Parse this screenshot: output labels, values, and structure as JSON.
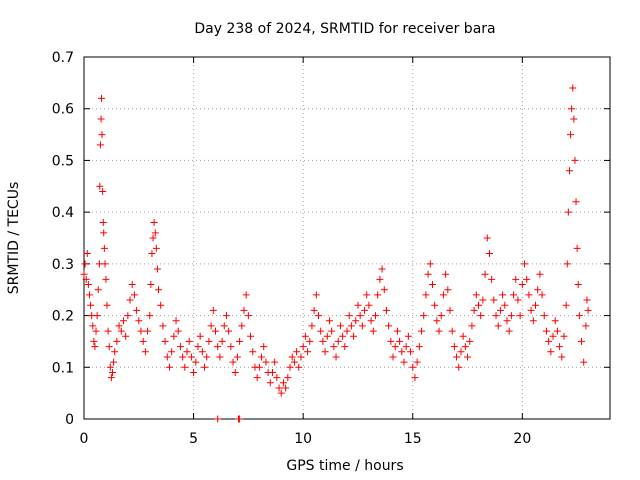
{
  "chart_data": {
    "type": "scatter",
    "title": "Day 238 of 2024, SRMTID for receiver bara",
    "xlabel": "GPS time / hours",
    "ylabel": "SRMTID / TECUs",
    "xlim": [
      0,
      24
    ],
    "ylim": [
      0,
      0.7
    ],
    "xticks": [
      0,
      5,
      10,
      15,
      20
    ],
    "xtick_labels": [
      "0",
      "5",
      "10",
      "15",
      "20"
    ],
    "yticks": [
      0,
      0.1,
      0.2,
      0.3,
      0.4,
      0.5,
      0.6,
      0.7
    ],
    "ytick_labels": [
      "0",
      "0.1",
      "0.2",
      "0.3",
      "0.4",
      "0.5",
      "0.6",
      "0.7"
    ],
    "grid": true,
    "marker": "+",
    "marker_color": "#ff0000",
    "series": [
      {
        "name": "SRMTID",
        "points": [
          [
            0.0,
            0.28
          ],
          [
            0.05,
            0.3
          ],
          [
            0.1,
            0.27
          ],
          [
            0.15,
            0.32
          ],
          [
            0.2,
            0.26
          ],
          [
            0.25,
            0.24
          ],
          [
            0.3,
            0.22
          ],
          [
            0.35,
            0.2
          ],
          [
            0.4,
            0.18
          ],
          [
            0.45,
            0.15
          ],
          [
            0.5,
            0.14
          ],
          [
            0.55,
            0.17
          ],
          [
            0.6,
            0.2
          ],
          [
            0.65,
            0.25
          ],
          [
            0.7,
            0.3
          ],
          [
            0.72,
            0.45
          ],
          [
            0.75,
            0.53
          ],
          [
            0.78,
            0.58
          ],
          [
            0.8,
            0.62
          ],
          [
            0.82,
            0.55
          ],
          [
            0.85,
            0.44
          ],
          [
            0.88,
            0.38
          ],
          [
            0.9,
            0.36
          ],
          [
            0.93,
            0.33
          ],
          [
            0.96,
            0.3
          ],
          [
            1.0,
            0.27
          ],
          [
            1.05,
            0.22
          ],
          [
            1.1,
            0.17
          ],
          [
            1.15,
            0.14
          ],
          [
            1.2,
            0.1
          ],
          [
            1.25,
            0.08
          ],
          [
            1.3,
            0.09
          ],
          [
            1.35,
            0.11
          ],
          [
            1.4,
            0.13
          ],
          [
            1.5,
            0.15
          ],
          [
            1.6,
            0.18
          ],
          [
            1.7,
            0.17
          ],
          [
            1.8,
            0.19
          ],
          [
            1.9,
            0.16
          ],
          [
            2.0,
            0.2
          ],
          [
            2.1,
            0.23
          ],
          [
            2.2,
            0.26
          ],
          [
            2.3,
            0.24
          ],
          [
            2.4,
            0.21
          ],
          [
            2.5,
            0.19
          ],
          [
            2.6,
            0.17
          ],
          [
            2.7,
            0.15
          ],
          [
            2.8,
            0.13
          ],
          [
            2.9,
            0.17
          ],
          [
            3.0,
            0.2
          ],
          [
            3.05,
            0.26
          ],
          [
            3.1,
            0.32
          ],
          [
            3.15,
            0.35
          ],
          [
            3.2,
            0.38
          ],
          [
            3.25,
            0.36
          ],
          [
            3.3,
            0.33
          ],
          [
            3.35,
            0.29
          ],
          [
            3.4,
            0.25
          ],
          [
            3.5,
            0.22
          ],
          [
            3.6,
            0.18
          ],
          [
            3.7,
            0.15
          ],
          [
            3.8,
            0.12
          ],
          [
            3.9,
            0.1
          ],
          [
            4.0,
            0.13
          ],
          [
            4.1,
            0.16
          ],
          [
            4.2,
            0.19
          ],
          [
            4.3,
            0.17
          ],
          [
            4.4,
            0.14
          ],
          [
            4.5,
            0.12
          ],
          [
            4.6,
            0.1
          ],
          [
            4.7,
            0.13
          ],
          [
            4.8,
            0.15
          ],
          [
            4.9,
            0.12
          ],
          [
            5.0,
            0.09
          ],
          [
            5.1,
            0.11
          ],
          [
            5.2,
            0.14
          ],
          [
            5.3,
            0.16
          ],
          [
            5.4,
            0.13
          ],
          [
            5.5,
            0.1
          ],
          [
            5.6,
            0.12
          ],
          [
            5.7,
            0.15
          ],
          [
            5.8,
            0.18
          ],
          [
            5.9,
            0.21
          ],
          [
            6.0,
            0.17
          ],
          [
            6.1,
            0.14
          ],
          [
            6.2,
            0.12
          ],
          [
            6.3,
            0.15
          ],
          [
            6.4,
            0.18
          ],
          [
            6.5,
            0.2
          ],
          [
            6.6,
            0.17
          ],
          [
            6.7,
            0.14
          ],
          [
            6.8,
            0.11
          ],
          [
            6.9,
            0.09
          ],
          [
            7.0,
            0.12
          ],
          [
            7.1,
            0.15
          ],
          [
            7.2,
            0.18
          ],
          [
            7.3,
            0.21
          ],
          [
            7.4,
            0.24
          ],
          [
            7.5,
            0.2
          ],
          [
            7.6,
            0.16
          ],
          [
            7.7,
            0.13
          ],
          [
            7.8,
            0.1
          ],
          [
            7.9,
            0.08
          ],
          [
            8.0,
            0.1
          ],
          [
            8.1,
            0.12
          ],
          [
            8.2,
            0.14
          ],
          [
            8.3,
            0.11
          ],
          [
            8.4,
            0.09
          ],
          [
            8.5,
            0.07
          ],
          [
            8.6,
            0.09
          ],
          [
            8.7,
            0.11
          ],
          [
            8.8,
            0.08
          ],
          [
            8.9,
            0.06
          ],
          [
            9.0,
            0.05
          ],
          [
            9.1,
            0.07
          ],
          [
            9.2,
            0.06
          ],
          [
            9.3,
            0.08
          ],
          [
            9.4,
            0.1
          ],
          [
            9.5,
            0.12
          ],
          [
            9.6,
            0.11
          ],
          [
            9.7,
            0.13
          ],
          [
            9.8,
            0.1
          ],
          [
            9.9,
            0.12
          ],
          [
            10.0,
            0.14
          ],
          [
            10.1,
            0.16
          ],
          [
            10.2,
            0.13
          ],
          [
            10.3,
            0.15
          ],
          [
            10.4,
            0.18
          ],
          [
            10.5,
            0.21
          ],
          [
            10.6,
            0.24
          ],
          [
            10.7,
            0.2
          ],
          [
            10.8,
            0.17
          ],
          [
            10.9,
            0.15
          ],
          [
            11.0,
            0.13
          ],
          [
            11.1,
            0.16
          ],
          [
            11.2,
            0.19
          ],
          [
            11.3,
            0.17
          ],
          [
            11.4,
            0.14
          ],
          [
            11.5,
            0.12
          ],
          [
            11.6,
            0.15
          ],
          [
            11.7,
            0.18
          ],
          [
            11.8,
            0.16
          ],
          [
            11.9,
            0.14
          ],
          [
            12.0,
            0.17
          ],
          [
            12.1,
            0.2
          ],
          [
            12.2,
            0.18
          ],
          [
            12.3,
            0.16
          ],
          [
            12.4,
            0.19
          ],
          [
            12.5,
            0.22
          ],
          [
            12.6,
            0.2
          ],
          [
            12.7,
            0.18
          ],
          [
            12.8,
            0.21
          ],
          [
            12.9,
            0.24
          ],
          [
            13.0,
            0.22
          ],
          [
            13.1,
            0.19
          ],
          [
            13.2,
            0.17
          ],
          [
            13.3,
            0.2
          ],
          [
            13.4,
            0.24
          ],
          [
            13.5,
            0.27
          ],
          [
            13.6,
            0.29
          ],
          [
            13.7,
            0.25
          ],
          [
            13.8,
            0.21
          ],
          [
            13.9,
            0.18
          ],
          [
            14.0,
            0.15
          ],
          [
            14.1,
            0.12
          ],
          [
            14.2,
            0.14
          ],
          [
            14.3,
            0.17
          ],
          [
            14.4,
            0.15
          ],
          [
            14.5,
            0.13
          ],
          [
            14.6,
            0.11
          ],
          [
            14.7,
            0.14
          ],
          [
            14.8,
            0.16
          ],
          [
            14.9,
            0.13
          ],
          [
            15.0,
            0.1
          ],
          [
            15.1,
            0.08
          ],
          [
            15.2,
            0.11
          ],
          [
            15.3,
            0.14
          ],
          [
            15.4,
            0.17
          ],
          [
            15.5,
            0.2
          ],
          [
            15.6,
            0.24
          ],
          [
            15.7,
            0.28
          ],
          [
            15.8,
            0.3
          ],
          [
            15.9,
            0.26
          ],
          [
            16.0,
            0.22
          ],
          [
            16.1,
            0.19
          ],
          [
            16.2,
            0.17
          ],
          [
            16.3,
            0.2
          ],
          [
            16.4,
            0.24
          ],
          [
            16.5,
            0.28
          ],
          [
            16.6,
            0.25
          ],
          [
            16.7,
            0.21
          ],
          [
            16.8,
            0.17
          ],
          [
            16.9,
            0.14
          ],
          [
            17.0,
            0.12
          ],
          [
            17.1,
            0.1
          ],
          [
            17.2,
            0.13
          ],
          [
            17.3,
            0.16
          ],
          [
            17.4,
            0.14
          ],
          [
            17.5,
            0.12
          ],
          [
            17.6,
            0.15
          ],
          [
            17.7,
            0.18
          ],
          [
            17.8,
            0.21
          ],
          [
            17.9,
            0.24
          ],
          [
            18.0,
            0.22
          ],
          [
            18.1,
            0.2
          ],
          [
            18.2,
            0.23
          ],
          [
            18.3,
            0.28
          ],
          [
            18.4,
            0.35
          ],
          [
            18.5,
            0.32
          ],
          [
            18.6,
            0.27
          ],
          [
            18.7,
            0.23
          ],
          [
            18.8,
            0.2
          ],
          [
            18.9,
            0.18
          ],
          [
            19.0,
            0.21
          ],
          [
            19.1,
            0.24
          ],
          [
            19.2,
            0.22
          ],
          [
            19.3,
            0.19
          ],
          [
            19.4,
            0.17
          ],
          [
            19.5,
            0.2
          ],
          [
            19.6,
            0.24
          ],
          [
            19.7,
            0.27
          ],
          [
            19.8,
            0.23
          ],
          [
            19.9,
            0.2
          ],
          [
            20.0,
            0.26
          ],
          [
            20.1,
            0.3
          ],
          [
            20.2,
            0.27
          ],
          [
            20.3,
            0.24
          ],
          [
            20.4,
            0.21
          ],
          [
            20.5,
            0.19
          ],
          [
            20.6,
            0.22
          ],
          [
            20.7,
            0.25
          ],
          [
            20.8,
            0.28
          ],
          [
            20.9,
            0.24
          ],
          [
            21.0,
            0.2
          ],
          [
            21.1,
            0.17
          ],
          [
            21.2,
            0.15
          ],
          [
            21.3,
            0.13
          ],
          [
            21.4,
            0.16
          ],
          [
            21.5,
            0.19
          ],
          [
            21.6,
            0.17
          ],
          [
            21.7,
            0.14
          ],
          [
            21.8,
            0.12
          ],
          [
            21.9,
            0.16
          ],
          [
            22.0,
            0.22
          ],
          [
            22.05,
            0.3
          ],
          [
            22.1,
            0.4
          ],
          [
            22.15,
            0.48
          ],
          [
            22.2,
            0.55
          ],
          [
            22.25,
            0.6
          ],
          [
            22.3,
            0.64
          ],
          [
            22.35,
            0.58
          ],
          [
            22.4,
            0.5
          ],
          [
            22.45,
            0.42
          ],
          [
            22.5,
            0.33
          ],
          [
            22.55,
            0.26
          ],
          [
            22.6,
            0.2
          ],
          [
            22.7,
            0.15
          ],
          [
            22.8,
            0.11
          ],
          [
            22.9,
            0.18
          ],
          [
            22.95,
            0.23
          ],
          [
            23.0,
            0.21
          ],
          [
            6.1,
            0.0
          ],
          [
            7.05,
            0.0
          ],
          [
            7.1,
            0.0
          ]
        ]
      }
    ]
  }
}
